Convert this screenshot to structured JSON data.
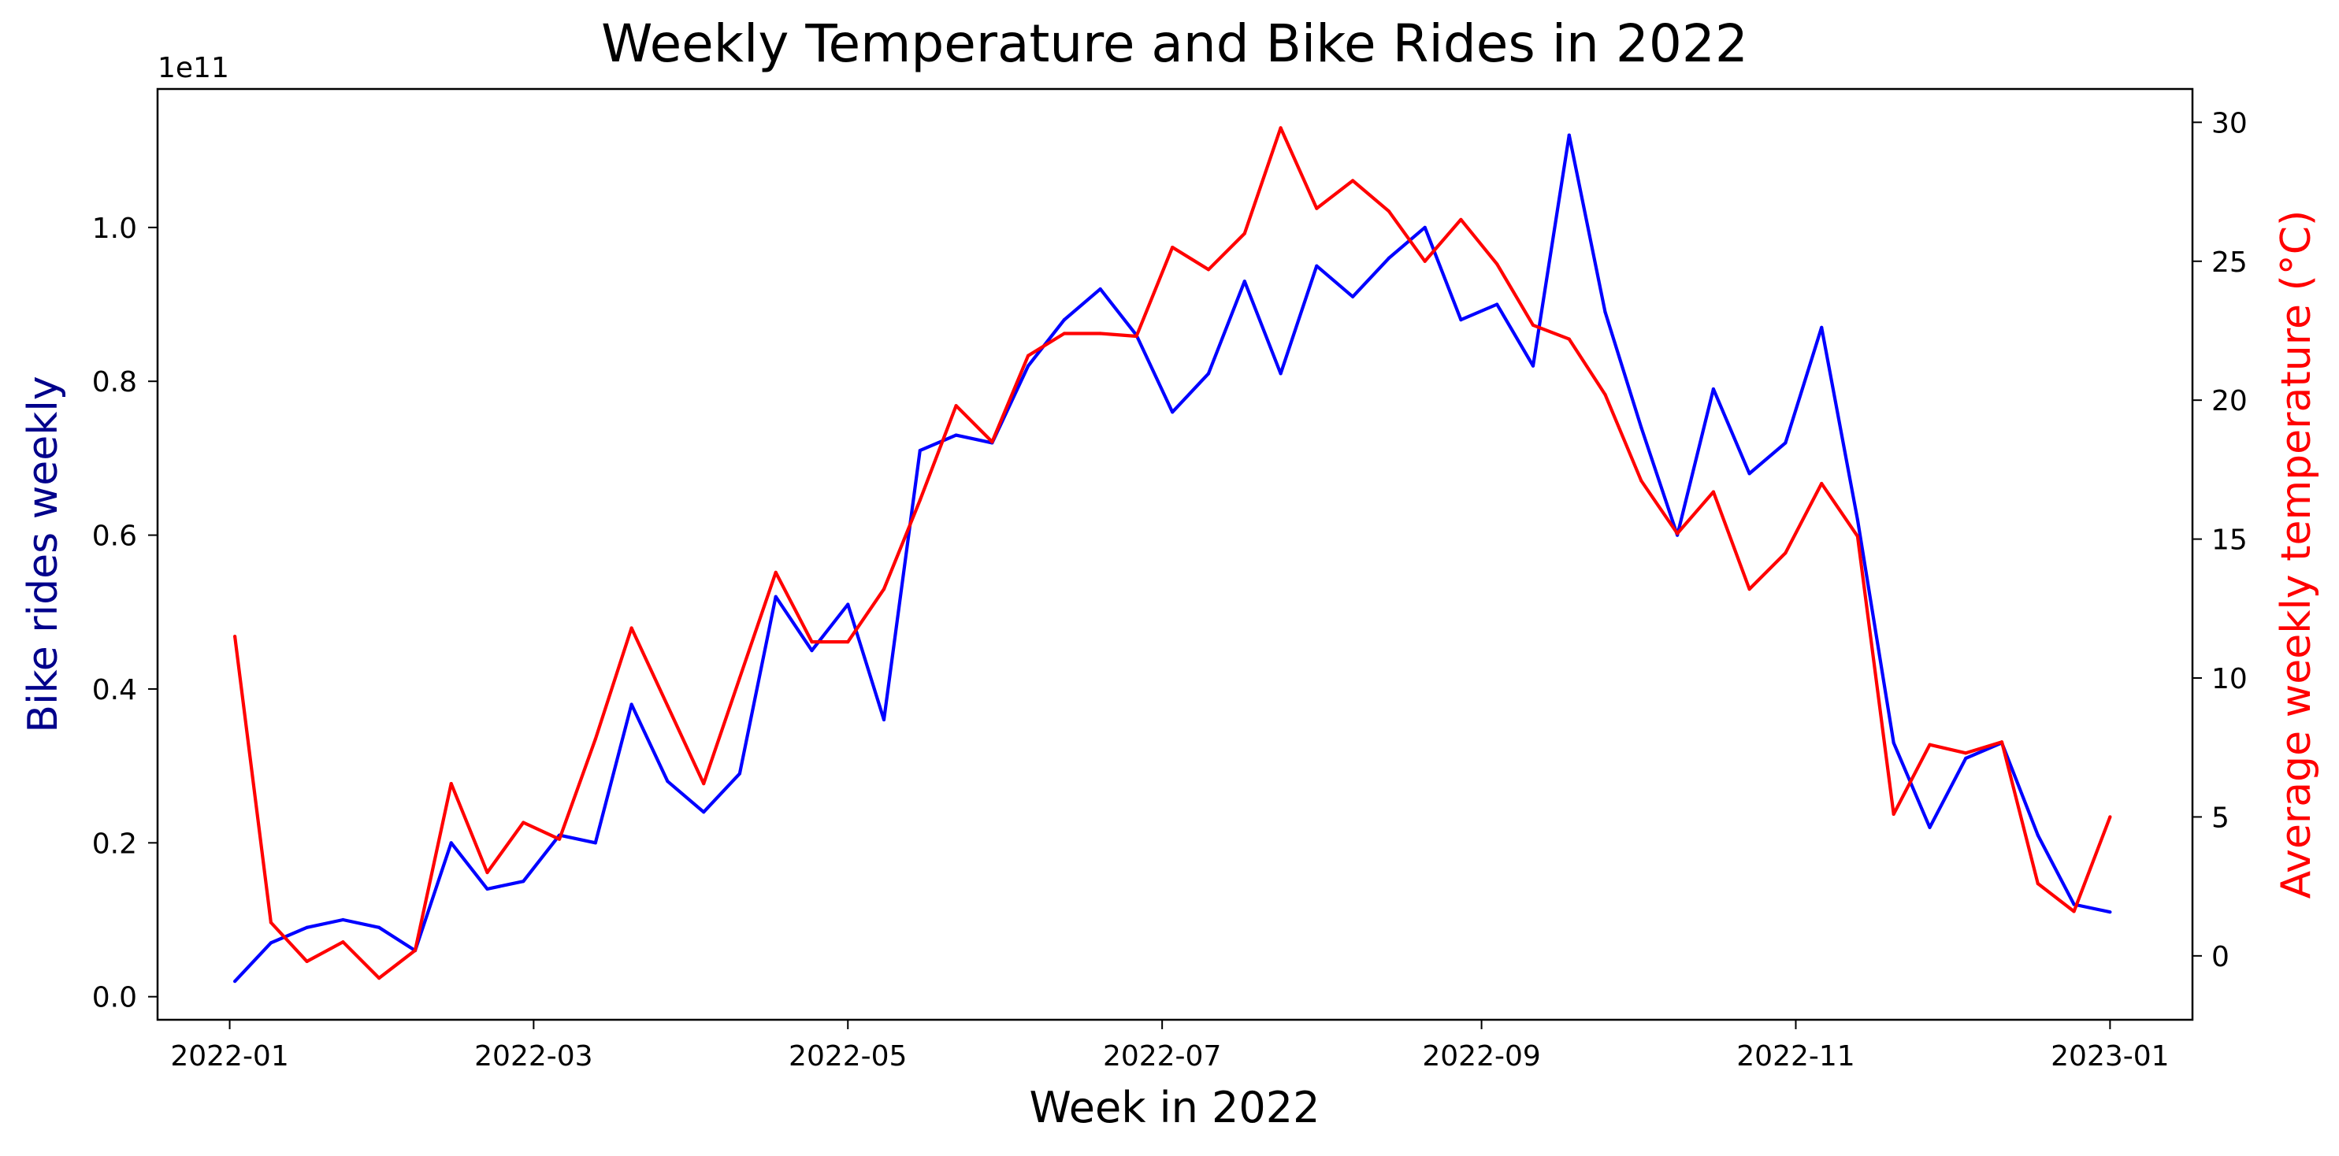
{
  "chart_data": {
    "type": "line",
    "title": "Weekly Temperature and Bike Rides in 2022",
    "xlabel": "Week in 2022",
    "ylabel_left": "Bike rides weekly",
    "ylabel_right": "Average weekly temperature (°C)",
    "left_axis_offset_label": "1e11",
    "x_ticks": [
      "2022-01",
      "2022-03",
      "2022-05",
      "2022-07",
      "2022-09",
      "2022-11",
      "2023-01"
    ],
    "y_left_ticks": [
      "0.0",
      "0.2",
      "0.4",
      "0.6",
      "0.8",
      "1.0"
    ],
    "y_right_ticks": [
      "0",
      "5",
      "10",
      "15",
      "20",
      "25",
      "30"
    ],
    "xlim": [
      "2021-12-18",
      "2023-01-17"
    ],
    "ylim_left": [
      -0.03,
      1.18
    ],
    "ylim_right": [
      -2.3,
      31.2
    ],
    "grid": false,
    "legend": "none",
    "dates": [
      "2022-01-02",
      "2022-01-09",
      "2022-01-16",
      "2022-01-23",
      "2022-01-30",
      "2022-02-06",
      "2022-02-13",
      "2022-02-20",
      "2022-02-27",
      "2022-03-06",
      "2022-03-13",
      "2022-03-20",
      "2022-03-27",
      "2022-04-03",
      "2022-04-10",
      "2022-04-17",
      "2022-04-24",
      "2022-05-01",
      "2022-05-08",
      "2022-05-15",
      "2022-05-22",
      "2022-05-29",
      "2022-06-05",
      "2022-06-12",
      "2022-06-19",
      "2022-06-26",
      "2022-07-03",
      "2022-07-10",
      "2022-07-17",
      "2022-07-24",
      "2022-07-31",
      "2022-08-07",
      "2022-08-14",
      "2022-08-21",
      "2022-08-28",
      "2022-09-04",
      "2022-09-11",
      "2022-09-18",
      "2022-09-25",
      "2022-10-02",
      "2022-10-09",
      "2022-10-16",
      "2022-10-23",
      "2022-10-30",
      "2022-11-06",
      "2022-11-13",
      "2022-11-20",
      "2022-11-27",
      "2022-12-04",
      "2022-12-11",
      "2022-12-18",
      "2022-12-25",
      "2023-01-01"
    ],
    "series": [
      {
        "axis": "left",
        "color": "#0000ff",
        "values": [
          0.02,
          0.07,
          0.09,
          0.1,
          0.09,
          0.06,
          0.2,
          0.14,
          0.15,
          0.21,
          0.2,
          0.38,
          0.28,
          0.24,
          0.29,
          0.52,
          0.45,
          0.51,
          0.36,
          0.71,
          0.73,
          0.72,
          0.82,
          0.88,
          0.92,
          0.86,
          0.76,
          0.81,
          0.93,
          0.81,
          0.95,
          0.91,
          0.96,
          1.0,
          0.88,
          0.9,
          0.82,
          1.12,
          0.89,
          0.74,
          0.6,
          0.79,
          0.68,
          0.72,
          0.87,
          0.62,
          0.33,
          0.22,
          0.31,
          0.33,
          0.21,
          0.12,
          0.11
        ]
      },
      {
        "axis": "right",
        "color": "#ff0000",
        "values": [
          11.5,
          1.2,
          -0.2,
          0.5,
          -0.8,
          0.2,
          6.2,
          3.0,
          4.8,
          4.2,
          7.8,
          11.8,
          9.0,
          6.2,
          10.0,
          13.8,
          11.3,
          11.3,
          13.2,
          16.4,
          19.8,
          18.5,
          21.6,
          22.4,
          22.4,
          22.3,
          25.5,
          24.7,
          26.0,
          29.8,
          26.9,
          27.9,
          26.8,
          25.0,
          26.5,
          24.9,
          22.7,
          22.2,
          20.2,
          17.1,
          15.2,
          16.7,
          13.2,
          14.5,
          17.0,
          15.1,
          5.1,
          7.6,
          7.3,
          7.7,
          2.6,
          1.6,
          5.0
        ]
      }
    ],
    "colors": {
      "left_axis_label": "#00008b",
      "right_axis_label": "#ff0000",
      "axes": "#000000"
    }
  }
}
